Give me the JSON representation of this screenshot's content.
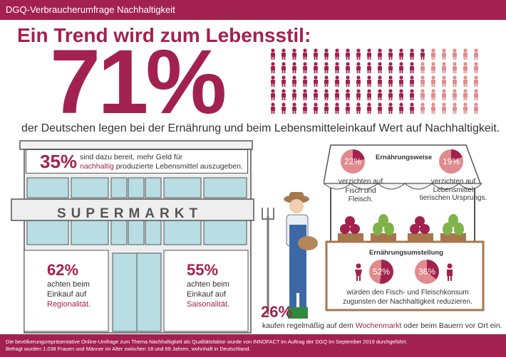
{
  "header": {
    "title": "DGQ-Verbraucherumfrage Nachhaltigkeit"
  },
  "headline": "Ein Trend wird zum Lebensstil:",
  "main_stat": {
    "percent": "71%",
    "value": 71,
    "text": "der Deutschen legen bei der Ernährung und beim Lebensmitteleinkauf Wert auf Nachhaltigkeit."
  },
  "colors": {
    "accent": "#a3214f",
    "light": "#e08b8d",
    "store": "#b8dde3",
    "wall": "#e8e8e8"
  },
  "supermarket": {
    "sign": "SUPERMARKT",
    "stat_extra_money": {
      "percent": "35%",
      "text_before": "sind dazu bereit, mehr Geld für",
      "highlight": "nachhaltig",
      "text_after": "produzierte Lebensmittel auszugeben."
    },
    "stat_regional": {
      "percent": "62%",
      "line1": "achten beim",
      "line2": "Einkauf auf",
      "highlight": "Regionalität",
      "suffix": "."
    },
    "stat_seasonal": {
      "percent": "55%",
      "line1": "achten beim",
      "line2": "Einkauf auf",
      "highlight": "Saisonalität",
      "suffix": "."
    }
  },
  "market": {
    "diet_title": "Ernährungsweise",
    "diet_fish_meat": {
      "percent": "22%",
      "value": 22,
      "line1": "verzichten auf",
      "line2": "Fisch und Fleisch."
    },
    "diet_animal": {
      "percent": "19%",
      "value": 19,
      "line1": "verzichten auf",
      "line2": "Lebensmittel",
      "line3": "tierischen Ursprungs."
    },
    "change_title": "Ernährungsumstellung",
    "change_women": {
      "percent": "52%",
      "value": 52
    },
    "change_men": {
      "percent": "36%",
      "value": 36
    },
    "change_text1": "würden den Fisch- und Fleischkonsum",
    "change_text2": "zugunsten der Nachhaltigkeit reduzieren."
  },
  "weekly_market": {
    "percent": "26%",
    "text_before": "kaufen regelmäßig auf dem",
    "highlight": "Wochenmarkt",
    "text_after": "oder beim Bauern vor Ort ein."
  },
  "footer": {
    "line1": "Die bevölkerungsrepräsentative Online-Umfrage zum Thema Nachhaltigkeit als Qualitätsfaktor wurde von INNOFACT im Auftrag der DGQ im September 2019 durchgeführt.",
    "line2": "Befragt wurden 1.038 Frauen und Männer im Alter zwischen 18 und 69 Jahren, wohnhaft in Deutschland."
  }
}
